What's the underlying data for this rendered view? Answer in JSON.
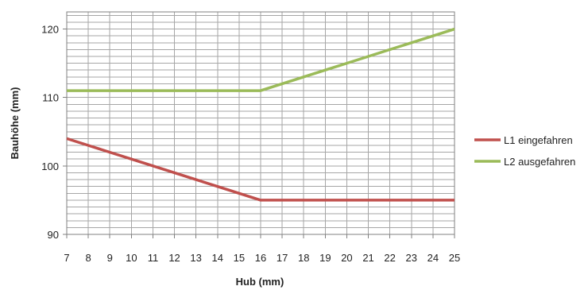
{
  "chart_data": {
    "type": "line",
    "title": "",
    "xlabel": "Hub (mm)",
    "ylabel": "Bauhöhe (mm)",
    "x": [
      7,
      8,
      9,
      10,
      11,
      12,
      13,
      14,
      15,
      16,
      17,
      18,
      19,
      20,
      21,
      22,
      23,
      24,
      25
    ],
    "xlim": [
      7,
      25
    ],
    "ylim": [
      90,
      122.5
    ],
    "y_ticks": [
      90,
      100,
      110,
      120
    ],
    "grid": true,
    "legend_position": "right",
    "series": [
      {
        "name": "L1 eingefahren",
        "color": "#c0504d",
        "values": [
          104,
          103,
          102,
          101,
          100,
          99,
          98,
          97,
          96,
          95,
          95,
          95,
          95,
          95,
          95,
          95,
          95,
          95,
          95
        ]
      },
      {
        "name": "L2 ausgefahren",
        "color": "#9bbb59",
        "values": [
          111,
          111,
          111,
          111,
          111,
          111,
          111,
          111,
          111,
          111,
          112,
          113,
          114,
          115,
          116,
          117,
          118,
          119,
          120
        ]
      }
    ],
    "colors": {
      "grid": "#a6a6a6",
      "axis": "#808080"
    }
  }
}
